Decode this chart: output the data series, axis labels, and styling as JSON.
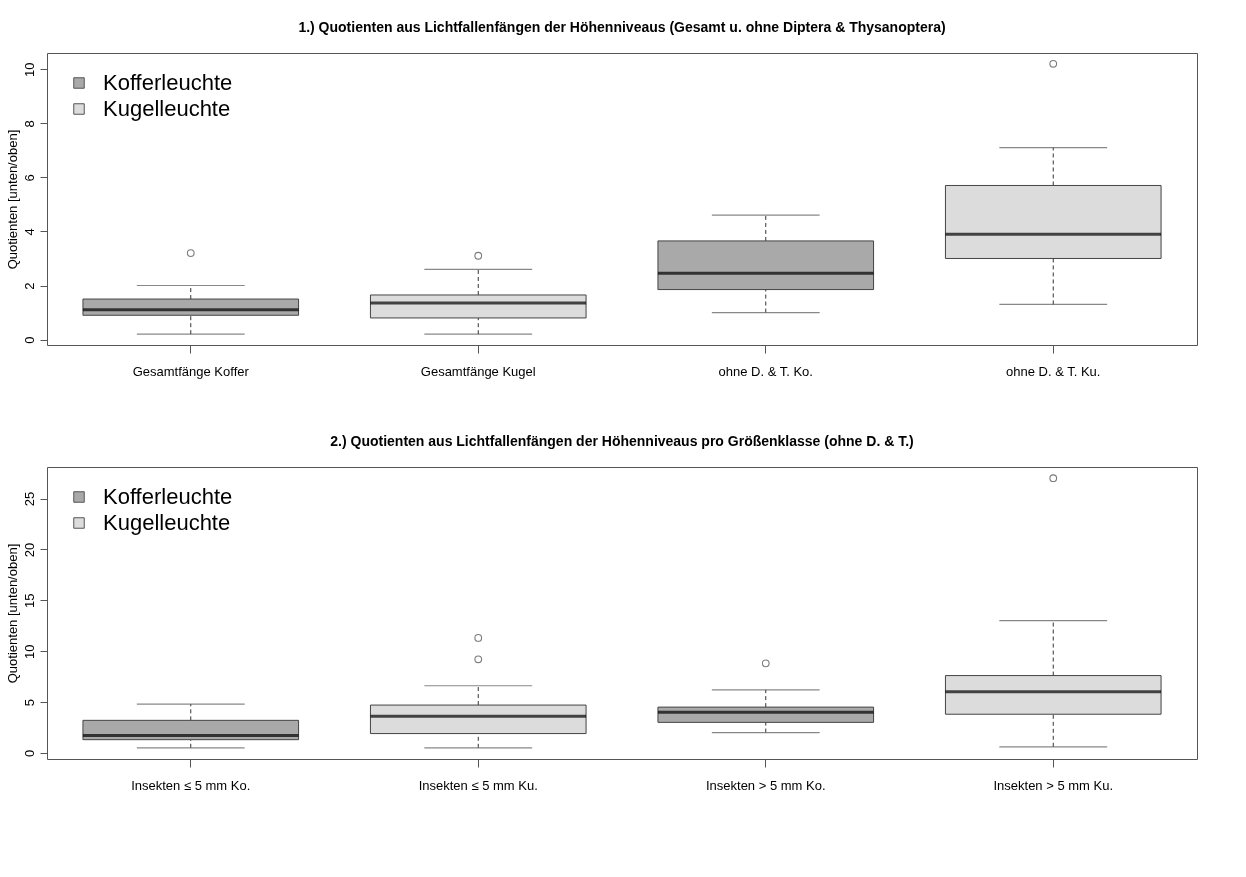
{
  "chart_data": [
    {
      "type": "box",
      "title": "1.) Quotienten aus Lichtfallenfängen der Höhenniveaus (Gesamt u. ohne Diptera & Thysanoptera)",
      "ylabel": "Quotienten [unten/oben]",
      "categories": [
        "Gesamtfänge Koffer",
        "Gesamtfänge Kugel",
        "ohne D. & T. Ko.",
        "ohne D. & T. Ku."
      ],
      "ylim": [
        -0.2,
        10.6
      ],
      "yticks": [
        0,
        2,
        4,
        6,
        8,
        10
      ],
      "legend": "top left",
      "series": [
        {
          "name": "Kofferleuchte",
          "color": "#a9a9a9",
          "boxes": [
            {
              "low": 0.2,
              "q1": 0.9,
              "median": 1.1,
              "q3": 1.5,
              "high": 2.0,
              "outliers": [
                3.2
              ]
            },
            null,
            {
              "low": 1.0,
              "q1": 1.85,
              "median": 2.45,
              "q3": 3.65,
              "high": 4.6
            },
            null
          ]
        },
        {
          "name": "Kugelleuchte",
          "color": "#dcdcdc",
          "boxes": [
            null,
            {
              "low": 0.2,
              "q1": 0.8,
              "median": 1.35,
              "q3": 1.65,
              "high": 2.6,
              "outliers": [
                3.1
              ]
            },
            null,
            {
              "low": 1.3,
              "q1": 3.0,
              "median": 3.9,
              "q3": 5.7,
              "high": 7.1,
              "outliers": [
                10.2
              ]
            }
          ]
        }
      ]
    },
    {
      "type": "box",
      "title": "2.) Quotienten aus Lichtfallenfängen der Höhenniveaus pro Größenklasse (ohne D. & T.)",
      "ylabel": "Quotienten [unten/oben]",
      "categories": [
        "Insekten ≤ 5 mm Ko.",
        "Insekten ≤ 5 mm Ku.",
        "Insekten > 5 mm Ko.",
        "Insekten > 5 mm Ku."
      ],
      "ylim": [
        -0.6,
        28.1
      ],
      "yticks": [
        0,
        5,
        10,
        15,
        20,
        25
      ],
      "legend": "top left",
      "series": [
        {
          "name": "Kofferleuchte",
          "color": "#a9a9a9",
          "boxes": [
            {
              "low": 0.5,
              "q1": 1.3,
              "median": 1.7,
              "q3": 3.2,
              "high": 4.8
            },
            null,
            {
              "low": 2.0,
              "q1": 3.0,
              "median": 4.0,
              "q3": 4.5,
              "high": 6.2,
              "outliers": [
                8.8
              ]
            },
            null
          ]
        },
        {
          "name": "Kugelleuchte",
          "color": "#dcdcdc",
          "boxes": [
            null,
            {
              "low": 0.5,
              "q1": 1.9,
              "median": 3.6,
              "q3": 4.7,
              "high": 6.6,
              "outliers": [
                9.2,
                11.3
              ]
            },
            null,
            {
              "low": 0.6,
              "q1": 3.8,
              "median": 6.0,
              "q3": 7.6,
              "high": 13.0,
              "outliers": [
                27.0
              ]
            }
          ]
        }
      ]
    }
  ]
}
